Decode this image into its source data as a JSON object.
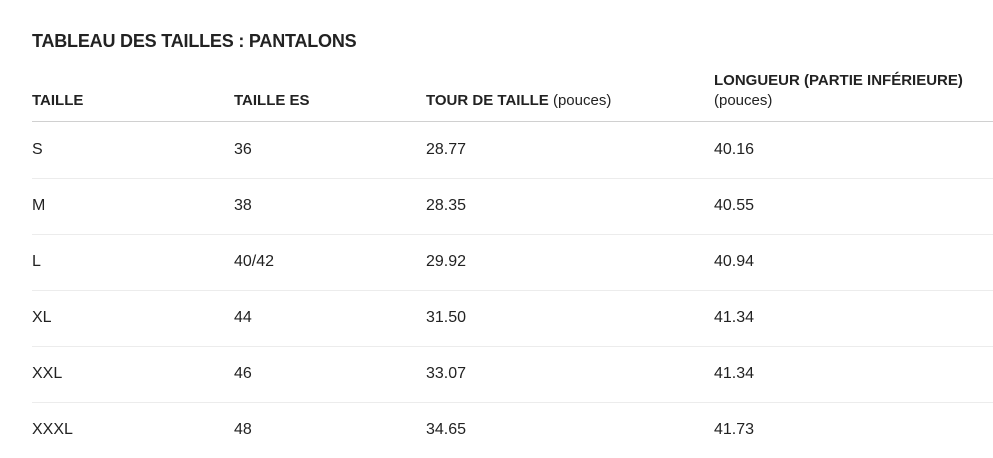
{
  "title": "TABLEAU DES TAILLES : PANTALONS",
  "table": {
    "header": [
      {
        "label": "TAILLE"
      },
      {
        "label": "TAILLE ES"
      },
      {
        "label": "TOUR DE TAILLE",
        "unit": "(pouces)"
      },
      {
        "label": "LONGUEUR (PARTIE INFÉRIEURE)",
        "unit": "(pouces)"
      }
    ],
    "rows": [
      [
        "S",
        "36",
        "28.77",
        "40.16"
      ],
      [
        "M",
        "38",
        "28.35",
        "40.55"
      ],
      [
        "L",
        "40/42",
        "29.92",
        "40.94"
      ],
      [
        "XL",
        "44",
        "31.50",
        "41.34"
      ],
      [
        "XXL",
        "46",
        "33.07",
        "41.34"
      ],
      [
        "XXXL",
        "48",
        "34.65",
        "41.73"
      ]
    ]
  }
}
